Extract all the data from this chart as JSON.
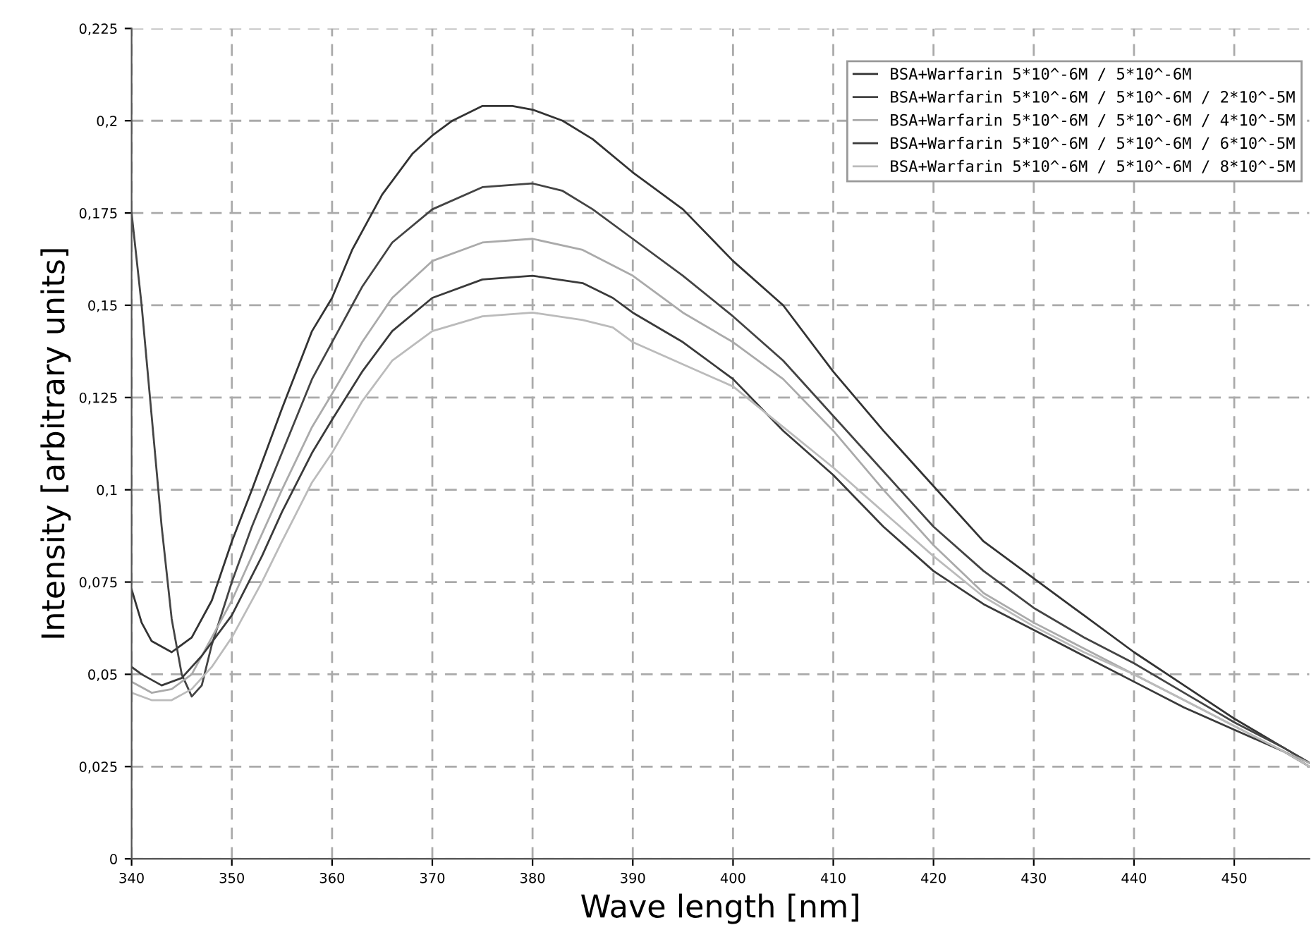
{
  "chart_data": {
    "type": "line",
    "xlabel": "Wave length [nm]",
    "ylabel": "Intensity [arbitrary units]",
    "xlim": [
      340,
      457.5
    ],
    "ylim": [
      0,
      0.225
    ],
    "xticks": [
      340,
      350,
      360,
      370,
      380,
      390,
      400,
      410,
      420,
      430,
      440,
      450
    ],
    "yticks": [
      0,
      {
        "value": 0.025,
        "label": "0,025"
      },
      {
        "value": 0.05,
        "label": "0,05"
      },
      {
        "value": 0.075,
        "label": "0,075"
      },
      {
        "value": 0.1,
        "label": "0,1"
      },
      {
        "value": 0.125,
        "label": "0,125"
      },
      {
        "value": 0.15,
        "label": "0,15"
      },
      {
        "value": 0.175,
        "label": "0,175"
      },
      {
        "value": 0.2,
        "label": "0,2"
      },
      {
        "value": 0.225,
        "label": "0,225"
      }
    ],
    "grid": true,
    "legend": "top right",
    "marker": "none",
    "line_style": "solid",
    "series": [
      {
        "name": "BSA+Warfarin 5*10^-6M / 5*10^-6M",
        "color": "#333333",
        "x": [
          340,
          341,
          342,
          344,
          346,
          348,
          350,
          352,
          355,
          358,
          360,
          362,
          365,
          368,
          370,
          372,
          375,
          378,
          380,
          383,
          386,
          390,
          395,
          400,
          405,
          410,
          415,
          420,
          425,
          430,
          435,
          440,
          445,
          450,
          455,
          457.5
        ],
        "values": [
          0.073,
          0.064,
          0.059,
          0.056,
          0.06,
          0.07,
          0.086,
          0.1,
          0.122,
          0.143,
          0.152,
          0.165,
          0.18,
          0.191,
          0.196,
          0.2,
          0.204,
          0.204,
          0.203,
          0.2,
          0.195,
          0.186,
          0.176,
          0.162,
          0.15,
          0.132,
          0.116,
          0.101,
          0.086,
          0.076,
          0.066,
          0.056,
          0.047,
          0.038,
          0.03,
          0.026
        ]
      },
      {
        "name": "BSA+Warfarin 5*10^-6M / 5*10^-6M / 2*10^-5M",
        "color": "#444444",
        "x": [
          340,
          341,
          342,
          343,
          344,
          345,
          346,
          347,
          348,
          350,
          352,
          355,
          358,
          360,
          363,
          366,
          370,
          375,
          380,
          383,
          386,
          390,
          395,
          400,
          405,
          410,
          415,
          420,
          425,
          430,
          435,
          440,
          445,
          450,
          455,
          457.5
        ],
        "values": [
          0.175,
          0.15,
          0.12,
          0.09,
          0.065,
          0.05,
          0.044,
          0.047,
          0.058,
          0.075,
          0.09,
          0.11,
          0.13,
          0.14,
          0.155,
          0.167,
          0.176,
          0.182,
          0.183,
          0.181,
          0.176,
          0.168,
          0.158,
          0.147,
          0.135,
          0.12,
          0.105,
          0.09,
          0.078,
          0.068,
          0.06,
          0.053,
          0.045,
          0.037,
          0.03,
          0.026
        ]
      },
      {
        "name": "BSA+Warfarin 5*10^-6M / 5*10^-6M / 4*10^-5M",
        "color": "#aaaaaa",
        "x": [
          340,
          342,
          344,
          346,
          348,
          350,
          352,
          355,
          358,
          360,
          363,
          366,
          370,
          375,
          380,
          385,
          390,
          395,
          400,
          405,
          410,
          415,
          420,
          425,
          430,
          435,
          440,
          445,
          450,
          455,
          457.5
        ],
        "values": [
          0.048,
          0.045,
          0.046,
          0.05,
          0.06,
          0.07,
          0.082,
          0.1,
          0.117,
          0.126,
          0.14,
          0.152,
          0.162,
          0.167,
          0.168,
          0.165,
          0.158,
          0.148,
          0.14,
          0.13,
          0.116,
          0.1,
          0.085,
          0.072,
          0.064,
          0.057,
          0.05,
          0.043,
          0.036,
          0.029,
          0.026
        ]
      },
      {
        "name": "BSA+Warfarin 5*10^-6M / 5*10^-6M / 6*10^-5M",
        "color": "#3a3a3a",
        "x": [
          340,
          341,
          343,
          345,
          347,
          350,
          353,
          355,
          358,
          360,
          363,
          366,
          370,
          375,
          380,
          385,
          388,
          390,
          395,
          400,
          405,
          410,
          415,
          420,
          425,
          430,
          435,
          440,
          445,
          450,
          455,
          457.5
        ],
        "values": [
          0.052,
          0.05,
          0.047,
          0.049,
          0.055,
          0.066,
          0.082,
          0.094,
          0.11,
          0.119,
          0.132,
          0.143,
          0.152,
          0.157,
          0.158,
          0.156,
          0.152,
          0.148,
          0.14,
          0.13,
          0.116,
          0.104,
          0.09,
          0.078,
          0.069,
          0.062,
          0.055,
          0.048,
          0.041,
          0.035,
          0.029,
          0.025
        ]
      },
      {
        "name": "BSA+Warfarin 5*10^-6M / 5*10^-6M / 8*10^-5M",
        "color": "#bbbbbb",
        "x": [
          340,
          342,
          344,
          346,
          348,
          350,
          353,
          355,
          358,
          360,
          363,
          366,
          370,
          375,
          380,
          385,
          388,
          390,
          395,
          400,
          405,
          410,
          415,
          420,
          425,
          430,
          435,
          440,
          445,
          450,
          455,
          457.5
        ],
        "values": [
          0.045,
          0.043,
          0.043,
          0.046,
          0.052,
          0.06,
          0.075,
          0.086,
          0.102,
          0.11,
          0.124,
          0.135,
          0.143,
          0.147,
          0.148,
          0.146,
          0.144,
          0.14,
          0.134,
          0.128,
          0.117,
          0.106,
          0.094,
          0.082,
          0.071,
          0.063,
          0.056,
          0.05,
          0.043,
          0.036,
          0.029,
          0.025
        ]
      }
    ]
  }
}
